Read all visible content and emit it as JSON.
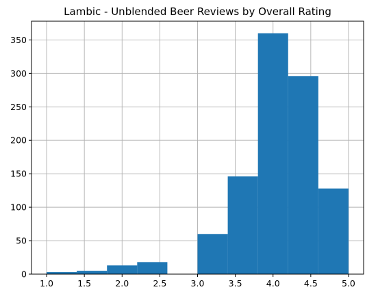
{
  "chart_data": {
    "type": "bar",
    "subtype": "histogram",
    "title": "Lambic - Unblended Beer Reviews by Overall Rating",
    "xlabel": "",
    "ylabel": "",
    "bins": [
      {
        "start": 1.0,
        "end": 1.4,
        "count": 3
      },
      {
        "start": 1.4,
        "end": 1.8,
        "count": 5
      },
      {
        "start": 1.8,
        "end": 2.2,
        "count": 13
      },
      {
        "start": 2.2,
        "end": 2.6,
        "count": 18
      },
      {
        "start": 2.6,
        "end": 3.0,
        "count": 0
      },
      {
        "start": 3.0,
        "end": 3.4,
        "count": 60
      },
      {
        "start": 3.4,
        "end": 3.8,
        "count": 146
      },
      {
        "start": 3.8,
        "end": 4.2,
        "count": 360
      },
      {
        "start": 4.2,
        "end": 4.6,
        "count": 296
      },
      {
        "start": 4.6,
        "end": 5.0,
        "count": 128
      }
    ],
    "xlim": [
      0.8,
      5.2
    ],
    "ylim": [
      0,
      378
    ],
    "xticks": [
      "1.0",
      "1.5",
      "2.0",
      "2.5",
      "3.0",
      "3.5",
      "4.0",
      "4.5",
      "5.0"
    ],
    "yticks": [
      "0",
      "50",
      "100",
      "150",
      "200",
      "250",
      "300",
      "350"
    ],
    "grid": true,
    "bar_color": "#1f77b4"
  }
}
